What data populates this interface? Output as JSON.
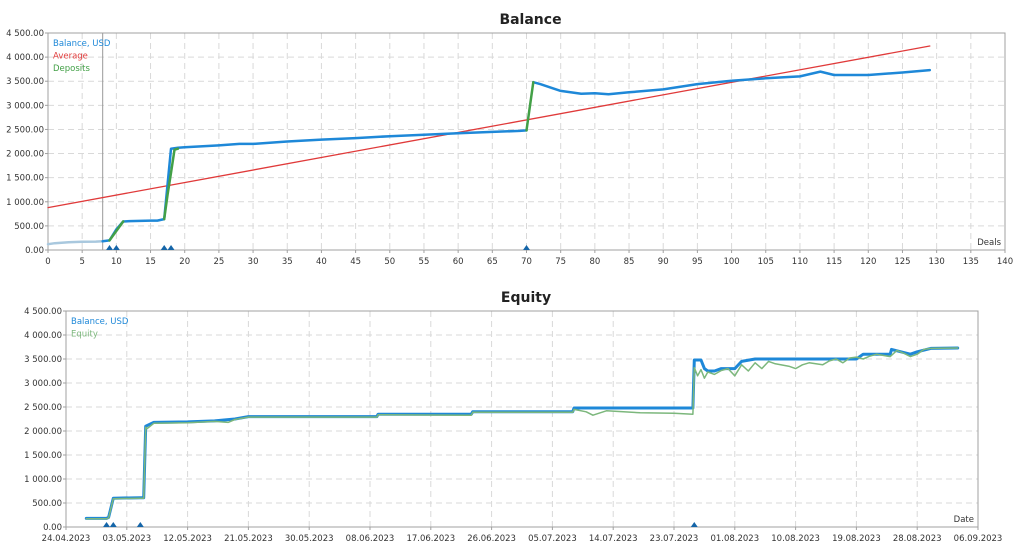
{
  "colors": {
    "balance": "#1e88d8",
    "balance_light": "#a9c8de",
    "average": "#e03a3a",
    "deposits": "#43a047",
    "equity": "#7cb77c",
    "grid": "#d9d9d9",
    "frame": "#a0a0a0",
    "text": "#333333",
    "marker": "#1565a8"
  },
  "chart_data": [
    {
      "type": "line",
      "title": "Balance",
      "xlabel": "Deals",
      "ylabel": "",
      "xlim": [
        0,
        140
      ],
      "ylim": [
        0,
        4500
      ],
      "x_ticks": [
        0,
        5,
        10,
        15,
        20,
        25,
        30,
        35,
        40,
        45,
        50,
        55,
        60,
        65,
        70,
        75,
        80,
        85,
        90,
        95,
        100,
        105,
        110,
        115,
        120,
        125,
        130,
        135,
        140
      ],
      "y_ticks": [
        0,
        500,
        1000,
        1500,
        2000,
        2500,
        3000,
        3500,
        4000,
        4500
      ],
      "y_tick_labels": [
        "0.00",
        "500.00",
        "1 000.00",
        "1 500.00",
        "2 000.00",
        "2 500.00",
        "3 000.00",
        "3 500.00",
        "4 000.00",
        "4 500.00"
      ],
      "grid": true,
      "legend_position": "top-left",
      "series": [
        {
          "name": "Balance, USD",
          "color_key": "balance",
          "x": [
            8,
            9,
            10,
            11,
            12,
            15,
            16,
            17,
            18,
            19,
            20,
            25,
            28,
            30,
            35,
            40,
            45,
            50,
            55,
            60,
            65,
            69,
            70
          ],
          "y": [
            180,
            200,
            430,
            590,
            600,
            610,
            610,
            640,
            2100,
            2120,
            2130,
            2170,
            2200,
            2200,
            2250,
            2290,
            2320,
            2360,
            2390,
            2420,
            2450,
            2470,
            2480
          ]
        },
        {
          "name": "",
          "color_key": "balance",
          "x": [
            71,
            72,
            75,
            78,
            80,
            82,
            85,
            90,
            95,
            100,
            105,
            110,
            113,
            115,
            120,
            125,
            129
          ],
          "y": [
            3480,
            3440,
            3300,
            3240,
            3250,
            3230,
            3270,
            3330,
            3440,
            3510,
            3560,
            3600,
            3700,
            3630,
            3630,
            3680,
            3730
          ]
        },
        {
          "name": "",
          "color_key": "balance_light",
          "x": [
            0,
            1,
            3,
            5,
            7,
            8
          ],
          "y": [
            120,
            140,
            160,
            170,
            175,
            180
          ]
        },
        {
          "name": "Average",
          "color_key": "average",
          "x": [
            0,
            129
          ],
          "y": [
            880,
            4230
          ]
        },
        {
          "name": "Deposits",
          "color_key": "deposits",
          "segments": [
            {
              "x": [
                9,
                11
              ],
              "y": [
                200,
                590
              ]
            },
            {
              "x": [
                17,
                17.5,
                18,
                18.5,
                19
              ],
              "y": [
                640,
                1150,
                1600,
                2080,
                2100
              ]
            },
            {
              "x": [
                70,
                71
              ],
              "y": [
                2480,
                3480
              ]
            }
          ]
        }
      ],
      "cursor_x": 8,
      "deposit_markers_x": [
        9,
        10,
        17,
        18,
        70
      ]
    },
    {
      "type": "line",
      "title": "Equity",
      "xlabel": "Date",
      "ylabel": "",
      "xlim": [
        0,
        135
      ],
      "ylim": [
        0,
        4500
      ],
      "x_ticks": [
        0,
        9,
        18,
        27,
        36,
        45,
        54,
        63,
        72,
        81,
        90,
        99,
        108,
        117,
        126,
        135
      ],
      "x_tick_labels": [
        "24.04.2023",
        "03.05.2023",
        "12.05.2023",
        "21.05.2023",
        "30.05.2023",
        "08.06.2023",
        "17.06.2023",
        "26.06.2023",
        "05.07.2023",
        "14.07.2023",
        "23.07.2023",
        "01.08.2023",
        "10.08.2023",
        "19.08.2023",
        "28.08.2023",
        "06.09.2023"
      ],
      "y_ticks": [
        0,
        500,
        1000,
        1500,
        2000,
        2500,
        3000,
        3500,
        4000,
        4500
      ],
      "y_tick_labels": [
        "0.00",
        "500.00",
        "1 000.00",
        "1 500.00",
        "2 000.00",
        "2 500.00",
        "3 000.00",
        "3 500.00",
        "4 000.00",
        "4 500.00"
      ],
      "grid": true,
      "legend_position": "top-left",
      "series": [
        {
          "name": "Balance, USD",
          "color_key": "balance",
          "x": [
            3,
            6,
            6.3,
            7,
            11,
            11.5,
            11.8,
            13,
            18,
            22,
            25,
            27,
            46,
            46.2,
            60,
            60.2,
            75,
            75.2,
            92.8,
            93,
            94,
            94.5,
            95,
            96,
            97,
            99,
            100,
            102,
            105,
            117,
            118,
            122,
            122.2,
            125,
            126,
            128,
            132
          ],
          "y": [
            180,
            180,
            200,
            600,
            610,
            610,
            2100,
            2180,
            2190,
            2210,
            2250,
            2300,
            2300,
            2350,
            2350,
            2400,
            2400,
            2480,
            2480,
            3480,
            3480,
            3300,
            3250,
            3250,
            3300,
            3300,
            3450,
            3500,
            3500,
            3500,
            3600,
            3600,
            3700,
            3600,
            3650,
            3720,
            3730
          ]
        },
        {
          "name": "Equity",
          "color_key": "equity",
          "x": [
            3,
            6,
            6.3,
            7,
            11,
            11.5,
            11.8,
            12,
            13,
            18,
            22,
            24,
            25,
            27,
            46,
            46.2,
            60,
            60.2,
            75,
            75.2,
            77,
            78,
            80,
            85,
            90,
            92.8,
            93,
            93.5,
            94,
            94.5,
            95,
            96,
            97,
            98,
            99,
            100,
            101,
            102,
            103,
            104,
            105,
            107,
            108,
            109,
            110,
            112,
            113,
            114,
            115,
            116,
            117,
            118,
            119,
            120,
            122,
            123,
            124,
            125,
            126,
            127,
            128,
            132
          ],
          "y": [
            170,
            170,
            190,
            590,
            600,
            600,
            2080,
            2050,
            2160,
            2170,
            2200,
            2180,
            2240,
            2290,
            2290,
            2340,
            2330,
            2390,
            2390,
            2450,
            2400,
            2330,
            2420,
            2380,
            2370,
            2350,
            3320,
            3150,
            3280,
            3100,
            3230,
            3180,
            3260,
            3300,
            3150,
            3380,
            3250,
            3420,
            3300,
            3450,
            3400,
            3350,
            3300,
            3380,
            3420,
            3380,
            3460,
            3500,
            3420,
            3520,
            3540,
            3500,
            3560,
            3600,
            3550,
            3680,
            3620,
            3550,
            3600,
            3700,
            3720,
            3730
          ]
        }
      ],
      "deposit_markers_x": [
        6,
        7,
        11,
        93
      ]
    }
  ]
}
